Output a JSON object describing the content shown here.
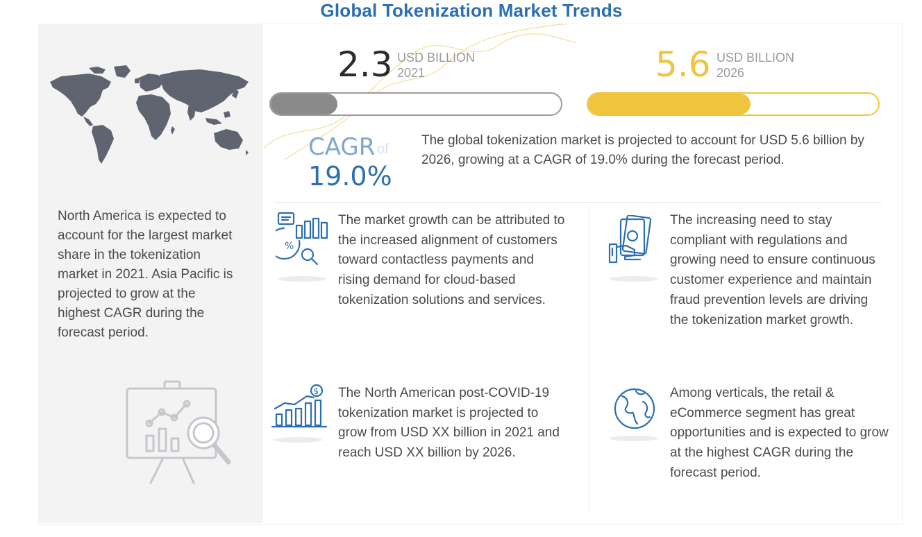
{
  "title": "Global Tokenization Market Trends",
  "market_2021": {
    "value": "2.3",
    "unit": "USD BILLION",
    "year": "2021",
    "fill_percent": 23
  },
  "market_2026": {
    "value": "5.6",
    "unit": "USD BILLION",
    "year": "2026",
    "fill_percent": 56
  },
  "cagr": {
    "label": "CAGR",
    "of": "of",
    "value": "19.0%"
  },
  "summary": "The global tokenization market is projected to account for USD 5.6 billion by 2026, growing at a CAGR of 19.0% during the forecast period.",
  "left_text": "North America is expected to account for the largest market share in the tokenization market in 2021. Asia Pacific is projected to grow at the highest CAGR during the forecast period.",
  "insights": [
    {
      "icon": "analytics-icon",
      "text": "The market growth can be attributed to the increased alignment of customers toward contactless payments and rising demand for cloud-based tokenization solutions and services."
    },
    {
      "icon": "payment-hand-icon",
      "text": "The increasing need to stay compliant with regulations and growing need to ensure continuous customer experience and maintain fraud prevention levels are driving the tokenization market growth."
    },
    {
      "icon": "growth-chart-dollar-icon",
      "text": "The North American post-COVID-19 tokenization market is projected to grow from USD XX billion in 2021 and reach USD XX billion by 2026."
    },
    {
      "icon": "globe-icon",
      "text": "Among verticals, the retail & eCommerce segment has great opportunities and is expected to grow at the highest CAGR during the forecast period."
    }
  ],
  "colors": {
    "title": "#2b6fb1",
    "accent_yellow": "#f0c43c",
    "gray_fill": "#8a8a8a",
    "cagr_blue": "#2b6fb1"
  }
}
